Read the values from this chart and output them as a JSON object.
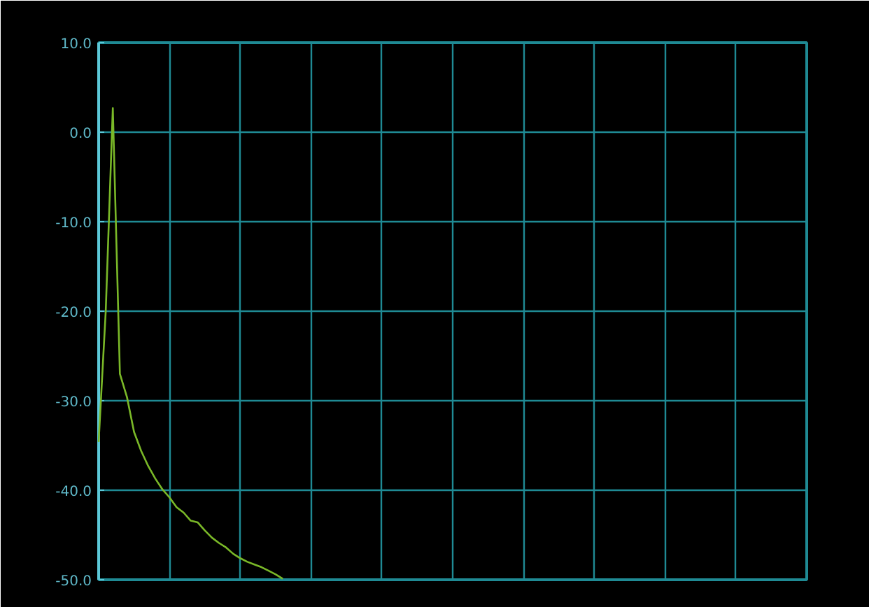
{
  "chart_data": {
    "type": "line",
    "relative": false,
    "categories": [
      null,
      null,
      null,
      null,
      null,
      null,
      null,
      null,
      null,
      null,
      null,
      null,
      null,
      null,
      null,
      null,
      null,
      null,
      null,
      null,
      null,
      null,
      null,
      null,
      null,
      null,
      null,
      null,
      null,
      null,
      null,
      null,
      null,
      null,
      null,
      null,
      null,
      null,
      null,
      null,
      null,
      null,
      null,
      null,
      null,
      null,
      null,
      null,
      null,
      null,
      null,
      null,
      null,
      null,
      null,
      null,
      null,
      null,
      null,
      null,
      null,
      null,
      null,
      null,
      null,
      null,
      null,
      null,
      null,
      null,
      null,
      null,
      null,
      null,
      null,
      null,
      null,
      null,
      null,
      null,
      null,
      null,
      null,
      null,
      null,
      null,
      null,
      null,
      null,
      null,
      null,
      null,
      null,
      null,
      null,
      null,
      null,
      null,
      null,
      null,
      null
    ],
    "series": [
      {
        "color": "#7ab828",
        "values": [
          -34.6,
          -20.0,
          2.7,
          -27.0,
          -29.6,
          -33.5,
          -35.6,
          -37.3,
          -38.7,
          -39.9,
          -40.8,
          -41.9,
          -42.5,
          -43.4,
          -43.6,
          -44.5,
          -45.3,
          -45.9,
          -46.4,
          -47.1,
          -47.6,
          -48.0,
          -48.3,
          -48.6,
          -49.0,
          -49.4,
          -49.9,
          null,
          null,
          null,
          null,
          null,
          null,
          null,
          null,
          null,
          null,
          null,
          null,
          null,
          null,
          null,
          null,
          null,
          null,
          null,
          null,
          null,
          null,
          null,
          null,
          null,
          null,
          null,
          null,
          null,
          null,
          null,
          null,
          null,
          null,
          null,
          null,
          null,
          null,
          null,
          null,
          null,
          null,
          null,
          null,
          null,
          null,
          null,
          null,
          null,
          null,
          null,
          null,
          null,
          null,
          null,
          null,
          null,
          null,
          null,
          null,
          null,
          null,
          null,
          null,
          null,
          null,
          null,
          null,
          null,
          null,
          null,
          null,
          null,
          null
        ]
      }
    ],
    "ylim": [
      -50,
      10
    ],
    "yticks": [
      {
        "value": 10,
        "label": "10.0"
      },
      {
        "value": 0,
        "label": "0.0"
      },
      {
        "value": -10,
        "label": "-10.0"
      },
      {
        "value": -20,
        "label": "-20.0"
      },
      {
        "value": -30,
        "label": "-30.0"
      },
      {
        "value": -40,
        "label": "-40.0"
      },
      {
        "value": -50,
        "label": "-50.0"
      }
    ],
    "tick_labels": "y",
    "grid": true,
    "marker": "none",
    "line_style": "solid"
  }
}
